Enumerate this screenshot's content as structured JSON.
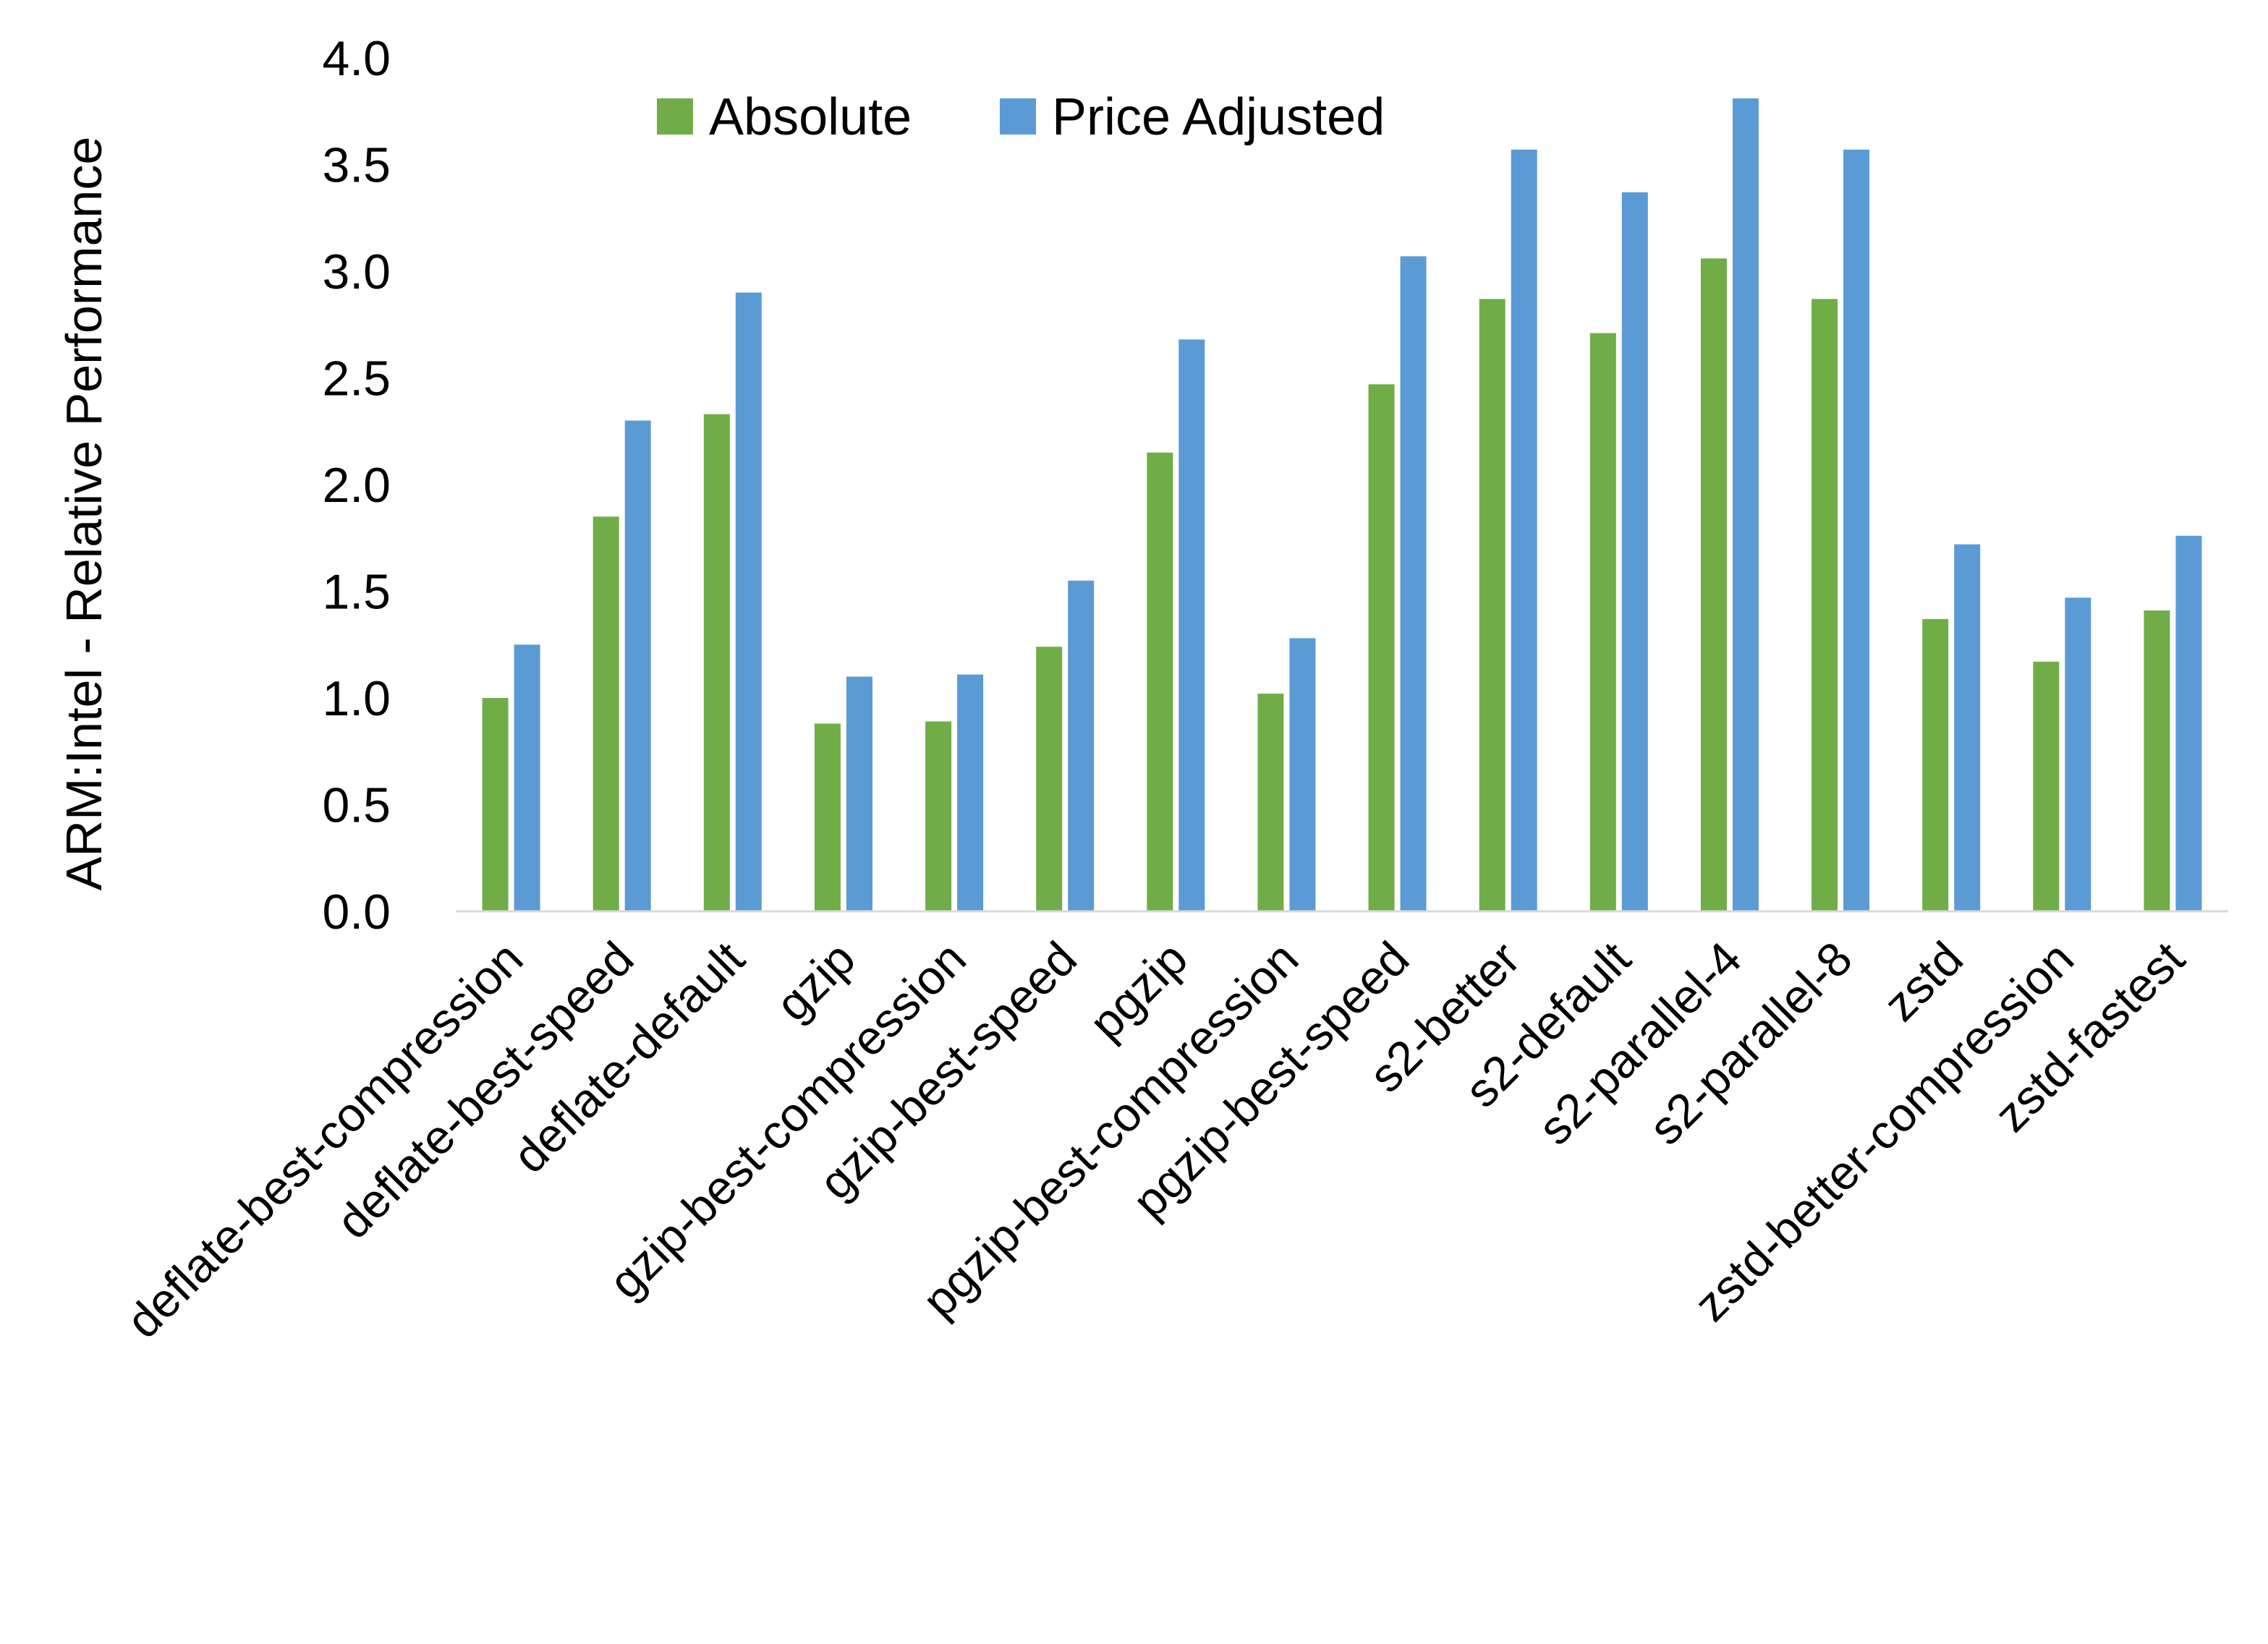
{
  "chart_data": {
    "type": "bar",
    "title": "",
    "xlabel": "",
    "ylabel": "ARM:Intel - Relative Performance",
    "ylim": [
      0,
      4.0
    ],
    "yticks": [
      "0.0",
      "0.5",
      "1.0",
      "1.5",
      "2.0",
      "2.5",
      "3.0",
      "3.5",
      "4.0"
    ],
    "grid": false,
    "legend_position": "top",
    "categories": [
      "deflate-best-compression",
      "deflate-best-speed",
      "deflate-default",
      "gzip",
      "gzip-best-compression",
      "gzip-best-speed",
      "pgzip",
      "pgzip-best-compression",
      "pgzip-best-speed",
      "s2-better",
      "s2-default",
      "s2-parallel-4",
      "s2-parallel-8",
      "zstd",
      "zstd-better-compression",
      "zstd-fastest"
    ],
    "series": [
      {
        "name": "Absolute",
        "color": "#70AD47",
        "values": [
          1.0,
          1.85,
          2.33,
          0.88,
          0.89,
          1.24,
          2.15,
          1.02,
          2.47,
          2.87,
          2.71,
          3.06,
          2.87,
          1.37,
          1.17,
          1.41
        ]
      },
      {
        "name": "Price Adjusted",
        "color": "#5B9BD5",
        "values": [
          1.25,
          2.3,
          2.9,
          1.1,
          1.11,
          1.55,
          2.68,
          1.28,
          3.07,
          3.57,
          3.37,
          3.81,
          3.57,
          1.72,
          1.47,
          1.76
        ]
      }
    ]
  }
}
